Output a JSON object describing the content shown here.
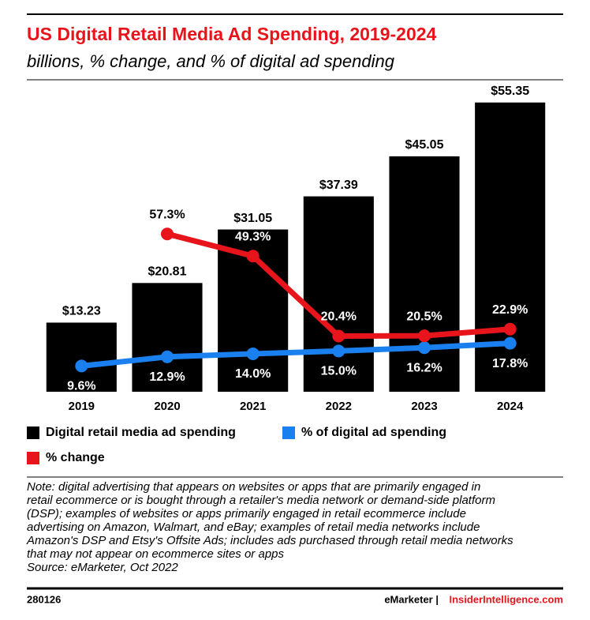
{
  "chart_data": {
    "type": "bar",
    "title": "US Digital Retail Media Ad Spending, 2019-2024",
    "subtitle": "billions, % change, and % of digital ad spending",
    "categories": [
      "2019",
      "2020",
      "2021",
      "2022",
      "2023",
      "2024"
    ],
    "ylim": [
      0,
      60
    ],
    "y2lim": [
      0,
      113
    ],
    "series": [
      {
        "name": "Digital retail media ad spending",
        "color": "#000000",
        "type": "bar",
        "values": [
          13.23,
          20.81,
          31.05,
          37.39,
          45.05,
          55.35
        ],
        "value_labels": [
          "$13.23",
          "$20.81",
          "$31.05",
          "$37.39",
          "$45.05",
          "$55.35"
        ]
      },
      {
        "name": "% of digital ad spending",
        "color": "#1a80f0",
        "type": "line",
        "axis": "y2",
        "values": [
          9.6,
          12.9,
          14.0,
          15.0,
          16.2,
          17.8
        ],
        "value_labels": [
          "9.6%",
          "12.9%",
          "14.0%",
          "15.0%",
          "16.2%",
          "17.8%"
        ]
      },
      {
        "name": "% change",
        "color": "#e8141c",
        "type": "line",
        "axis": "y2",
        "values": [
          null,
          57.3,
          49.3,
          20.4,
          20.5,
          22.9
        ],
        "value_labels": [
          null,
          "57.3%",
          "49.3%",
          "20.4%",
          "20.5%",
          "22.9%"
        ]
      }
    ],
    "note": [
      "Note: digital advertising that appears on websites or apps that are primarily engaged in",
      "retail ecommerce or is bought through a retailer's media network or demand-side platform",
      "(DSP); examples of websites or apps primarily engaged in retail ecommerce include",
      "advertising on Amazon, Walmart, and eBay; examples of retail media networks include",
      "Amazon's DSP and Etsy's Offsite Ads; includes ads purchased through retail media networks",
      "that may not appear on ecommerce sites or apps"
    ],
    "source": "Source: eMarketer, Oct 2022",
    "chart_id": "280126",
    "brand": "eMarketer |",
    "brand_site": "InsiderIntelligence.com"
  }
}
